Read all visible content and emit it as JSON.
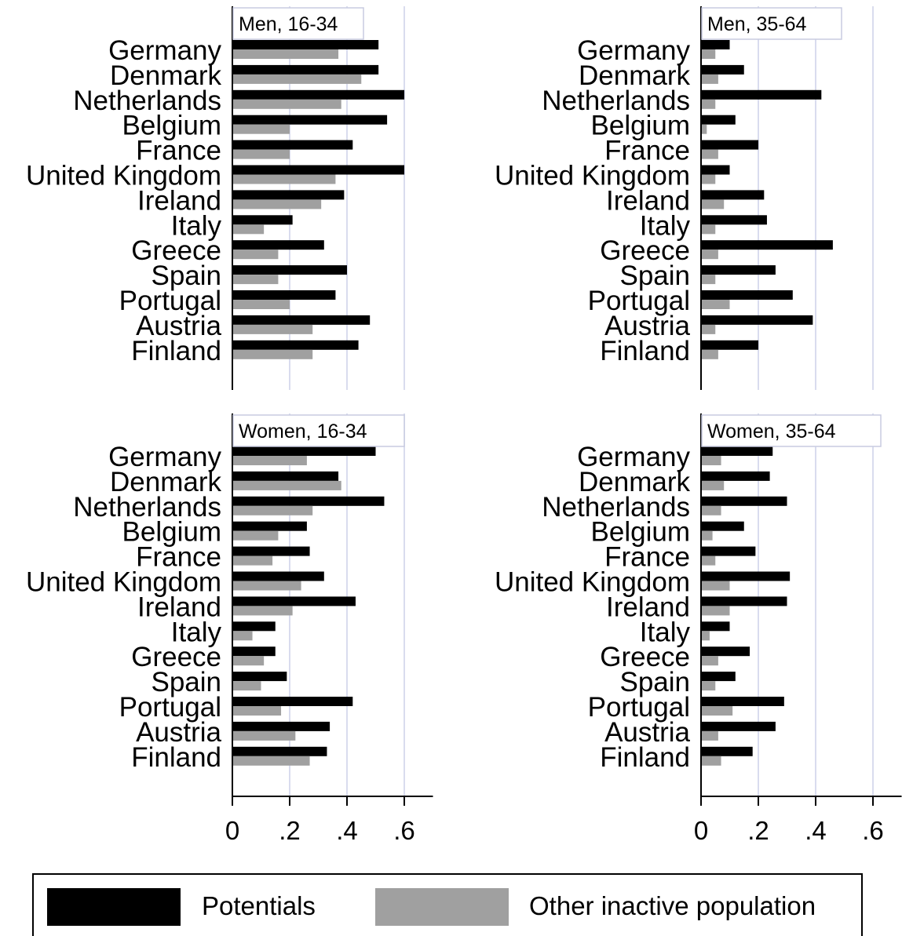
{
  "chart_data": [
    {
      "type": "bar",
      "title": "Men, 16-34",
      "categories": [
        "Germany",
        "Denmark",
        "Netherlands",
        "Belgium",
        "France",
        "United Kingdom",
        "Ireland",
        "Italy",
        "Greece",
        "Spain",
        "Portugal",
        "Austria",
        "Finland"
      ],
      "series": [
        {
          "name": "Potentials",
          "values": [
            0.51,
            0.51,
            0.6,
            0.54,
            0.42,
            0.6,
            0.39,
            0.21,
            0.32,
            0.4,
            0.36,
            0.48,
            0.44
          ]
        },
        {
          "name": "Other inactive population",
          "values": [
            0.37,
            0.45,
            0.38,
            0.2,
            0.2,
            0.36,
            0.31,
            0.11,
            0.16,
            0.16,
            0.2,
            0.28,
            0.28
          ]
        }
      ],
      "xlim": [
        0,
        0.7
      ],
      "xticks": [
        0,
        0.2,
        0.4,
        0.6
      ],
      "xtick_labels": [
        "0",
        ".2",
        ".4",
        ".6"
      ],
      "grid": true
    },
    {
      "type": "bar",
      "title": "Men,  35-64",
      "categories": [
        "Germany",
        "Denmark",
        "Netherlands",
        "Belgium",
        "France",
        "United Kingdom",
        "Ireland",
        "Italy",
        "Greece",
        "Spain",
        "Portugal",
        "Austria",
        "Finland"
      ],
      "series": [
        {
          "name": "Potentials",
          "values": [
            0.1,
            0.15,
            0.42,
            0.12,
            0.2,
            0.1,
            0.22,
            0.23,
            0.46,
            0.26,
            0.32,
            0.39,
            0.2
          ]
        },
        {
          "name": "Other inactive population",
          "values": [
            0.05,
            0.06,
            0.05,
            0.02,
            0.06,
            0.05,
            0.08,
            0.05,
            0.06,
            0.05,
            0.1,
            0.05,
            0.06
          ]
        }
      ],
      "xlim": [
        0,
        0.7
      ],
      "xticks": [
        0,
        0.2,
        0.4,
        0.6
      ],
      "xtick_labels": [
        "0",
        ".2",
        ".4",
        ".6"
      ],
      "grid": true
    },
    {
      "type": "bar",
      "title": "Women, 16-34",
      "categories": [
        "Germany",
        "Denmark",
        "Netherlands",
        "Belgium",
        "France",
        "United Kingdom",
        "Ireland",
        "Italy",
        "Greece",
        "Spain",
        "Portugal",
        "Austria",
        "Finland"
      ],
      "series": [
        {
          "name": "Potentials",
          "values": [
            0.5,
            0.37,
            0.53,
            0.26,
            0.27,
            0.32,
            0.43,
            0.15,
            0.15,
            0.19,
            0.42,
            0.34,
            0.33
          ]
        },
        {
          "name": "Other inactive population",
          "values": [
            0.26,
            0.38,
            0.28,
            0.16,
            0.14,
            0.24,
            0.21,
            0.07,
            0.11,
            0.1,
            0.17,
            0.22,
            0.27
          ]
        }
      ],
      "xlim": [
        0,
        0.7
      ],
      "xticks": [
        0,
        0.2,
        0.4,
        0.6
      ],
      "xtick_labels": [
        "0",
        ".2",
        ".4",
        ".6"
      ],
      "grid": true
    },
    {
      "type": "bar",
      "title": "Women,  35-64",
      "categories": [
        "Germany",
        "Denmark",
        "Netherlands",
        "Belgium",
        "France",
        "United Kingdom",
        "Ireland",
        "Italy",
        "Greece",
        "Spain",
        "Portugal",
        "Austria",
        "Finland"
      ],
      "series": [
        {
          "name": "Potentials",
          "values": [
            0.25,
            0.24,
            0.3,
            0.15,
            0.19,
            0.31,
            0.3,
            0.1,
            0.17,
            0.12,
            0.29,
            0.26,
            0.18
          ]
        },
        {
          "name": "Other inactive population",
          "values": [
            0.07,
            0.08,
            0.07,
            0.04,
            0.05,
            0.1,
            0.1,
            0.03,
            0.06,
            0.05,
            0.11,
            0.06,
            0.07
          ]
        }
      ],
      "xlim": [
        0,
        0.7
      ],
      "xticks": [
        0,
        0.2,
        0.4,
        0.6
      ],
      "xtick_labels": [
        "0",
        ".2",
        ".4",
        ".6"
      ],
      "grid": true
    }
  ],
  "legend": {
    "placement": "bottom",
    "items": [
      {
        "label": "Potentials",
        "color": "#000000"
      },
      {
        "label": "Other inactive population",
        "color": "#a0a0a0"
      }
    ]
  },
  "colors": {
    "potentials": "#000000",
    "other_inactive": "#a0a0a0",
    "grid": "#d9dcee",
    "axis": "#000000"
  }
}
